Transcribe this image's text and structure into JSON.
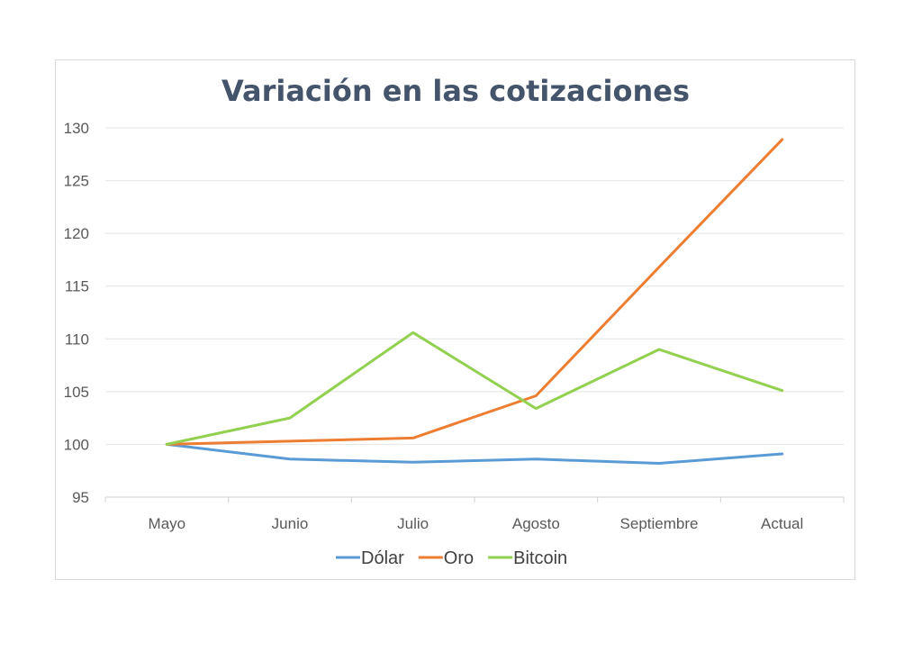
{
  "chart_data": {
    "type": "line",
    "title": "Variación en las cotizaciones",
    "xlabel": "",
    "ylabel": "",
    "categories": [
      "Mayo",
      "Junio",
      "Julio",
      "Agosto",
      "Septiembre",
      "Actual"
    ],
    "ylim": [
      95,
      130
    ],
    "yticks": [
      95,
      100,
      105,
      110,
      115,
      120,
      125,
      130
    ],
    "grid": true,
    "legend_position": "bottom",
    "series": [
      {
        "name": "Dólar",
        "color": "#5b9bd5",
        "values": [
          100,
          98.6,
          98.3,
          98.6,
          98.2,
          99.1
        ]
      },
      {
        "name": "Oro",
        "color": "#ed7d31",
        "values": [
          100,
          100.3,
          100.6,
          104.6,
          116.8,
          128.9
        ]
      },
      {
        "name": "Bitcoin",
        "color": "#92d050",
        "values": [
          100,
          102.5,
          110.6,
          103.4,
          109.0,
          105.1
        ]
      }
    ]
  }
}
